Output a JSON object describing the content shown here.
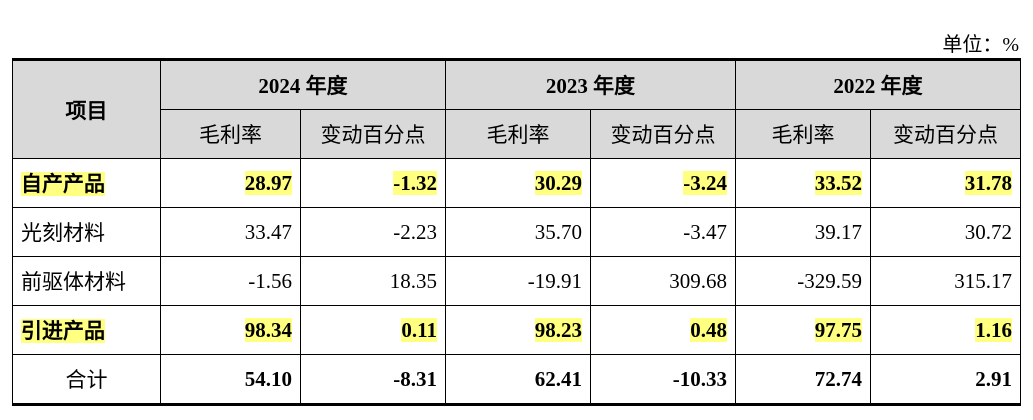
{
  "unit": "单位：%",
  "table": {
    "corner": "项目",
    "years": [
      "2024 年度",
      "2023 年度",
      "2022 年度"
    ],
    "subheaders": [
      "毛利率",
      "变动百分点"
    ],
    "highlight_color": "#ffff80",
    "rows": [
      {
        "label": "自产产品",
        "cells": [
          "28.97",
          "-1.32",
          "30.29",
          "-3.24",
          "33.52",
          "31.78"
        ],
        "bold": true,
        "highlight": true
      },
      {
        "label": "光刻材料",
        "cells": [
          "33.47",
          "-2.23",
          "35.70",
          "-3.47",
          "39.17",
          "30.72"
        ],
        "bold": false,
        "highlight": false
      },
      {
        "label": "前驱体材料",
        "cells": [
          "-1.56",
          "18.35",
          "-19.91",
          "309.68",
          "-329.59",
          "315.17"
        ],
        "bold": false,
        "highlight": false
      },
      {
        "label": "引进产品",
        "cells": [
          "98.34",
          "0.11",
          "98.23",
          "0.48",
          "97.75",
          "1.16"
        ],
        "bold": true,
        "highlight": true
      },
      {
        "label": "合计",
        "cells": [
          "54.10",
          "-8.31",
          "62.41",
          "-10.33",
          "72.74",
          "2.91"
        ],
        "bold": true,
        "highlight": false
      }
    ]
  }
}
